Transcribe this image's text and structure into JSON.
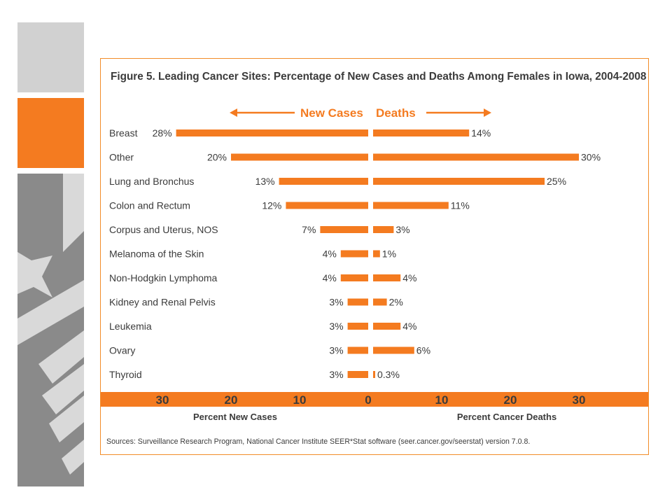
{
  "chart_data": {
    "type": "bar",
    "title": "Figure 5. Leading Cancer Sites: Percentage of New Cases and Deaths Among Females in Iowa, 2004-2008",
    "direction_labels": {
      "left": "New Cases",
      "right": "Deaths"
    },
    "categories": [
      "Breast",
      "Other",
      "Lung and Bronchus",
      "Colon and Rectum",
      "Corpus and Uterus, NOS",
      "Melanoma of the Skin",
      "Non-Hodgkin Lymphoma",
      "Kidney and Renal Pelvis",
      "Leukemia",
      "Ovary",
      "Thyroid"
    ],
    "series": [
      {
        "name": "New Cases",
        "side": "left",
        "values": [
          28,
          20,
          13,
          12,
          7,
          4,
          4,
          3,
          3,
          3,
          3
        ],
        "labels": [
          "28%",
          "20%",
          "13%",
          "12%",
          "7%",
          "4%",
          "4%",
          "3%",
          "3%",
          "3%",
          "3%"
        ]
      },
      {
        "name": "Deaths",
        "side": "right",
        "values": [
          14,
          30,
          25,
          11,
          3,
          1,
          4,
          2,
          4,
          6,
          0.3
        ],
        "labels": [
          "14%",
          "30%",
          "25%",
          "11%",
          "3%",
          "1%",
          "4%",
          "2%",
          "4%",
          "6%",
          "0.3%"
        ]
      }
    ],
    "xlim": [
      0,
      30
    ],
    "x_ticks_left": [
      "30",
      "20",
      "10",
      "0"
    ],
    "x_ticks_right": [
      "10",
      "20",
      "30"
    ],
    "xlabel_left": "Percent New Cases",
    "xlabel_right": "Percent Cancer Deaths",
    "grid": false,
    "bar_color": "#f47b20",
    "axis_band_color": "#f47b20",
    "text_color": "#3b3b3b"
  },
  "sources": "Sources: Surveillance Research Program, National Cancer Institute SEER*Stat software (seer.cancer.gov/seerstat) version 7.0.8.",
  "slide_colors": {
    "light_gray": "#d1d1d1",
    "orange": "#f47b20",
    "dark_gray": "#8a8a8a",
    "stripe": "#d9d9d9"
  }
}
